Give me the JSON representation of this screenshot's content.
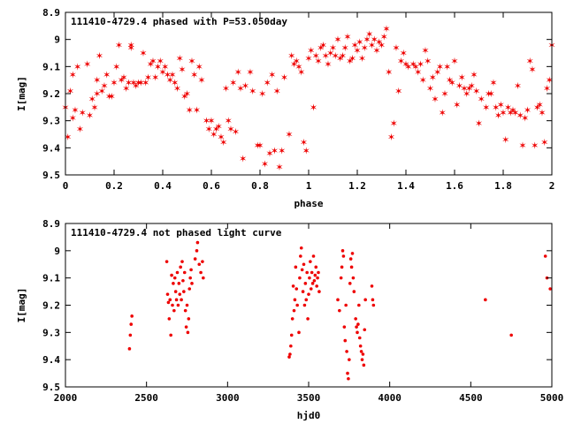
{
  "chart_data": [
    {
      "type": "scatter",
      "title": "111410-4729.4 phased with P=53.050day",
      "xlabel": "phase",
      "ylabel": "I[mag]",
      "xlim": [
        0,
        2
      ],
      "ylim": [
        8.9,
        9.5
      ],
      "y_inverted": true,
      "xticks": [
        "0",
        "0.2",
        "0.4",
        "0.6",
        "0.8",
        "1",
        "1.2",
        "1.4",
        "1.6",
        "1.8",
        "2"
      ],
      "yticks": [
        "8.9",
        "9",
        "9.1",
        "9.2",
        "9.3",
        "9.4",
        "9.5"
      ],
      "marker_color": "#ee0000",
      "marker": "star",
      "grid": false,
      "legend": "none",
      "points": [
        [
          0.0,
          9.25
        ],
        [
          0.01,
          9.36
        ],
        [
          0.02,
          9.19
        ],
        [
          0.03,
          9.13
        ],
        [
          0.03,
          9.29
        ],
        [
          0.04,
          9.26
        ],
        [
          0.05,
          9.1
        ],
        [
          0.06,
          9.33
        ],
        [
          0.07,
          9.27
        ],
        [
          0.09,
          9.09
        ],
        [
          0.1,
          9.28
        ],
        [
          0.11,
          9.22
        ],
        [
          0.12,
          9.25
        ],
        [
          0.13,
          9.2
        ],
        [
          0.13,
          9.15
        ],
        [
          0.14,
          9.06
        ],
        [
          0.15,
          9.19
        ],
        [
          0.16,
          9.17
        ],
        [
          0.17,
          9.13
        ],
        [
          0.18,
          9.21
        ],
        [
          0.19,
          9.21
        ],
        [
          0.2,
          9.16
        ],
        [
          0.21,
          9.1
        ],
        [
          0.22,
          9.02
        ],
        [
          0.23,
          9.15
        ],
        [
          0.24,
          9.14
        ],
        [
          0.25,
          9.18
        ],
        [
          0.26,
          9.16
        ],
        [
          0.27,
          9.03
        ],
        [
          0.27,
          9.02
        ],
        [
          0.28,
          9.16
        ],
        [
          0.29,
          9.17
        ],
        [
          0.3,
          9.16
        ],
        [
          0.31,
          9.16
        ],
        [
          0.32,
          9.05
        ],
        [
          0.33,
          9.16
        ],
        [
          0.34,
          9.14
        ],
        [
          0.35,
          9.09
        ],
        [
          0.36,
          9.08
        ],
        [
          0.37,
          9.14
        ],
        [
          0.38,
          9.1
        ],
        [
          0.39,
          9.08
        ],
        [
          0.4,
          9.12
        ],
        [
          0.41,
          9.1
        ],
        [
          0.42,
          9.13
        ],
        [
          0.43,
          9.15
        ],
        [
          0.44,
          9.13
        ],
        [
          0.45,
          9.16
        ],
        [
          0.46,
          9.18
        ],
        [
          0.47,
          9.07
        ],
        [
          0.48,
          9.11
        ],
        [
          0.49,
          9.21
        ],
        [
          0.5,
          9.2
        ],
        [
          0.51,
          9.26
        ],
        [
          0.52,
          9.08
        ],
        [
          0.53,
          9.13
        ],
        [
          0.54,
          9.26
        ],
        [
          0.55,
          9.1
        ],
        [
          0.56,
          9.15
        ],
        [
          0.58,
          9.3
        ],
        [
          0.59,
          9.33
        ],
        [
          0.6,
          9.3
        ],
        [
          0.61,
          9.35
        ],
        [
          0.62,
          9.33
        ],
        [
          0.63,
          9.32
        ],
        [
          0.64,
          9.36
        ],
        [
          0.65,
          9.38
        ],
        [
          0.66,
          9.18
        ],
        [
          0.67,
          9.3
        ],
        [
          0.68,
          9.33
        ],
        [
          0.69,
          9.16
        ],
        [
          0.7,
          9.34
        ],
        [
          0.71,
          9.12
        ],
        [
          0.72,
          9.18
        ],
        [
          0.73,
          9.44
        ],
        [
          0.74,
          9.17
        ],
        [
          0.76,
          9.12
        ],
        [
          0.77,
          9.19
        ],
        [
          0.79,
          9.39
        ],
        [
          0.8,
          9.39
        ],
        [
          0.81,
          9.2
        ],
        [
          0.82,
          9.46
        ],
        [
          0.83,
          9.16
        ],
        [
          0.84,
          9.42
        ],
        [
          0.85,
          9.13
        ],
        [
          0.86,
          9.41
        ],
        [
          0.87,
          9.19
        ],
        [
          0.88,
          9.47
        ],
        [
          0.89,
          9.41
        ],
        [
          0.9,
          9.14
        ],
        [
          0.92,
          9.35
        ],
        [
          0.93,
          9.06
        ],
        [
          0.94,
          9.09
        ],
        [
          0.95,
          9.08
        ],
        [
          0.96,
          9.1
        ],
        [
          0.97,
          9.12
        ],
        [
          0.98,
          9.38
        ],
        [
          0.99,
          9.41
        ],
        [
          1.0,
          9.07
        ],
        [
          1.01,
          9.04
        ],
        [
          1.02,
          9.25
        ],
        [
          1.03,
          9.06
        ],
        [
          1.04,
          9.08
        ],
        [
          1.05,
          9.03
        ],
        [
          1.06,
          9.02
        ],
        [
          1.07,
          9.06
        ],
        [
          1.08,
          9.09
        ],
        [
          1.09,
          9.05
        ],
        [
          1.1,
          9.03
        ],
        [
          1.11,
          9.06
        ],
        [
          1.12,
          9.0
        ],
        [
          1.13,
          9.07
        ],
        [
          1.14,
          9.06
        ],
        [
          1.15,
          9.03
        ],
        [
          1.16,
          8.99
        ],
        [
          1.17,
          9.08
        ],
        [
          1.18,
          9.07
        ],
        [
          1.19,
          9.02
        ],
        [
          1.2,
          9.04
        ],
        [
          1.21,
          9.01
        ],
        [
          1.22,
          9.07
        ],
        [
          1.23,
          9.03
        ],
        [
          1.24,
          9.0
        ],
        [
          1.25,
          8.98
        ],
        [
          1.26,
          9.02
        ],
        [
          1.27,
          9.0
        ],
        [
          1.28,
          9.04
        ],
        [
          1.29,
          9.01
        ],
        [
          1.3,
          9.02
        ],
        [
          1.31,
          8.99
        ],
        [
          1.32,
          8.96
        ],
        [
          1.33,
          9.12
        ],
        [
          1.34,
          9.36
        ],
        [
          1.35,
          9.31
        ],
        [
          1.36,
          9.03
        ],
        [
          1.37,
          9.19
        ],
        [
          1.38,
          9.08
        ],
        [
          1.39,
          9.05
        ],
        [
          1.4,
          9.09
        ],
        [
          1.41,
          9.1
        ],
        [
          1.43,
          9.09
        ],
        [
          1.44,
          9.1
        ],
        [
          1.45,
          9.12
        ],
        [
          1.46,
          9.09
        ],
        [
          1.47,
          9.15
        ],
        [
          1.48,
          9.04
        ],
        [
          1.49,
          9.08
        ],
        [
          1.5,
          9.18
        ],
        [
          1.51,
          9.14
        ],
        [
          1.52,
          9.22
        ],
        [
          1.53,
          9.12
        ],
        [
          1.54,
          9.1
        ],
        [
          1.55,
          9.27
        ],
        [
          1.56,
          9.2
        ],
        [
          1.57,
          9.1
        ],
        [
          1.58,
          9.15
        ],
        [
          1.59,
          9.16
        ],
        [
          1.6,
          9.08
        ],
        [
          1.61,
          9.24
        ],
        [
          1.62,
          9.17
        ],
        [
          1.63,
          9.14
        ],
        [
          1.64,
          9.18
        ],
        [
          1.65,
          9.2
        ],
        [
          1.66,
          9.18
        ],
        [
          1.67,
          9.17
        ],
        [
          1.68,
          9.13
        ],
        [
          1.69,
          9.19
        ],
        [
          1.7,
          9.31
        ],
        [
          1.71,
          9.22
        ],
        [
          1.73,
          9.25
        ],
        [
          1.74,
          9.2
        ],
        [
          1.75,
          9.2
        ],
        [
          1.76,
          9.16
        ],
        [
          1.77,
          9.25
        ],
        [
          1.78,
          9.28
        ],
        [
          1.79,
          9.24
        ],
        [
          1.8,
          9.27
        ],
        [
          1.81,
          9.37
        ],
        [
          1.82,
          9.25
        ],
        [
          1.83,
          9.27
        ],
        [
          1.84,
          9.26
        ],
        [
          1.85,
          9.27
        ],
        [
          1.86,
          9.17
        ],
        [
          1.87,
          9.28
        ],
        [
          1.88,
          9.39
        ],
        [
          1.89,
          9.29
        ],
        [
          1.9,
          9.26
        ],
        [
          1.91,
          9.08
        ],
        [
          1.92,
          9.11
        ],
        [
          1.93,
          9.39
        ],
        [
          1.94,
          9.25
        ],
        [
          1.95,
          9.24
        ],
        [
          1.96,
          9.27
        ],
        [
          1.97,
          9.38
        ],
        [
          1.98,
          9.18
        ],
        [
          1.99,
          9.15
        ],
        [
          2.0,
          9.02
        ]
      ]
    },
    {
      "type": "scatter",
      "title": "111410-4729.4 not phased light curve",
      "xlabel": "hjd0",
      "ylabel": "I[mag]",
      "xlim": [
        2000,
        5000
      ],
      "ylim": [
        8.9,
        9.5
      ],
      "y_inverted": true,
      "xticks": [
        "2000",
        "2500",
        "3000",
        "3500",
        "4000",
        "4500",
        "5000"
      ],
      "yticks": [
        "8.9",
        "9",
        "9.1",
        "9.2",
        "9.3",
        "9.4",
        "9.5"
      ],
      "marker_color": "#ee0000",
      "marker": "dot",
      "grid": false,
      "legend": "none",
      "points": [
        [
          2395,
          9.36
        ],
        [
          2400,
          9.31
        ],
        [
          2405,
          9.27
        ],
        [
          2410,
          9.24
        ],
        [
          2625,
          9.04
        ],
        [
          2630,
          9.16
        ],
        [
          2635,
          9.19
        ],
        [
          2640,
          9.25
        ],
        [
          2645,
          9.18
        ],
        [
          2650,
          9.31
        ],
        [
          2655,
          9.09
        ],
        [
          2660,
          9.2
        ],
        [
          2665,
          9.12
        ],
        [
          2670,
          9.22
        ],
        [
          2675,
          9.1
        ],
        [
          2680,
          9.15
        ],
        [
          2685,
          9.18
        ],
        [
          2690,
          9.08
        ],
        [
          2695,
          9.2
        ],
        [
          2700,
          9.12
        ],
        [
          2705,
          9.16
        ],
        [
          2710,
          9.06
        ],
        [
          2715,
          9.18
        ],
        [
          2720,
          9.04
        ],
        [
          2725,
          9.11
        ],
        [
          2730,
          9.15
        ],
        [
          2735,
          9.08
        ],
        [
          2740,
          9.22
        ],
        [
          2745,
          9.28
        ],
        [
          2750,
          9.2
        ],
        [
          2755,
          9.3
        ],
        [
          2760,
          9.25
        ],
        [
          2765,
          9.14
        ],
        [
          2770,
          9.1
        ],
        [
          2775,
          9.07
        ],
        [
          2780,
          9.12
        ],
        [
          2800,
          9.03
        ],
        [
          2810,
          9.0
        ],
        [
          2815,
          8.97
        ],
        [
          2825,
          9.05
        ],
        [
          2835,
          9.08
        ],
        [
          2845,
          9.04
        ],
        [
          2850,
          9.1
        ],
        [
          3380,
          9.39
        ],
        [
          3385,
          9.38
        ],
        [
          3390,
          9.35
        ],
        [
          3395,
          9.31
        ],
        [
          3400,
          9.25
        ],
        [
          3405,
          9.13
        ],
        [
          3410,
          9.22
        ],
        [
          3415,
          9.18
        ],
        [
          3420,
          9.06
        ],
        [
          3425,
          9.14
        ],
        [
          3430,
          9.2
        ],
        [
          3440,
          9.3
        ],
        [
          3445,
          9.1
        ],
        [
          3450,
          9.02
        ],
        [
          3455,
          8.99
        ],
        [
          3460,
          9.07
        ],
        [
          3465,
          9.15
        ],
        [
          3470,
          9.05
        ],
        [
          3475,
          9.2
        ],
        [
          3480,
          9.12
        ],
        [
          3485,
          9.18
        ],
        [
          3490,
          9.08
        ],
        [
          3495,
          9.25
        ],
        [
          3500,
          9.16
        ],
        [
          3505,
          9.1
        ],
        [
          3510,
          9.04
        ],
        [
          3515,
          9.14
        ],
        [
          3520,
          9.08
        ],
        [
          3525,
          9.12
        ],
        [
          3530,
          9.02
        ],
        [
          3535,
          9.11
        ],
        [
          3540,
          9.09
        ],
        [
          3545,
          9.06
        ],
        [
          3550,
          9.13
        ],
        [
          3555,
          9.1
        ],
        [
          3560,
          9.08
        ],
        [
          3565,
          9.15
        ],
        [
          3680,
          9.18
        ],
        [
          3690,
          9.22
        ],
        [
          3700,
          9.1
        ],
        [
          3705,
          9.06
        ],
        [
          3710,
          9.0
        ],
        [
          3715,
          9.02
        ],
        [
          3720,
          9.28
        ],
        [
          3725,
          9.33
        ],
        [
          3730,
          9.2
        ],
        [
          3735,
          9.37
        ],
        [
          3740,
          9.45
        ],
        [
          3745,
          9.47
        ],
        [
          3750,
          9.4
        ],
        [
          3755,
          9.12
        ],
        [
          3760,
          9.03
        ],
        [
          3765,
          9.06
        ],
        [
          3770,
          9.01
        ],
        [
          3775,
          9.1
        ],
        [
          3780,
          9.15
        ],
        [
          3790,
          9.25
        ],
        [
          3795,
          9.28
        ],
        [
          3800,
          9.3
        ],
        [
          3805,
          9.27
        ],
        [
          3810,
          9.2
        ],
        [
          3815,
          9.32
        ],
        [
          3820,
          9.35
        ],
        [
          3825,
          9.37
        ],
        [
          3830,
          9.4
        ],
        [
          3835,
          9.38
        ],
        [
          3840,
          9.42
        ],
        [
          3845,
          9.29
        ],
        [
          3850,
          9.18
        ],
        [
          3890,
          9.13
        ],
        [
          3895,
          9.18
        ],
        [
          3900,
          9.2
        ],
        [
          4590,
          9.18
        ],
        [
          4750,
          9.31
        ],
        [
          4960,
          9.02
        ],
        [
          4970,
          9.1
        ],
        [
          4990,
          9.14
        ]
      ]
    }
  ]
}
